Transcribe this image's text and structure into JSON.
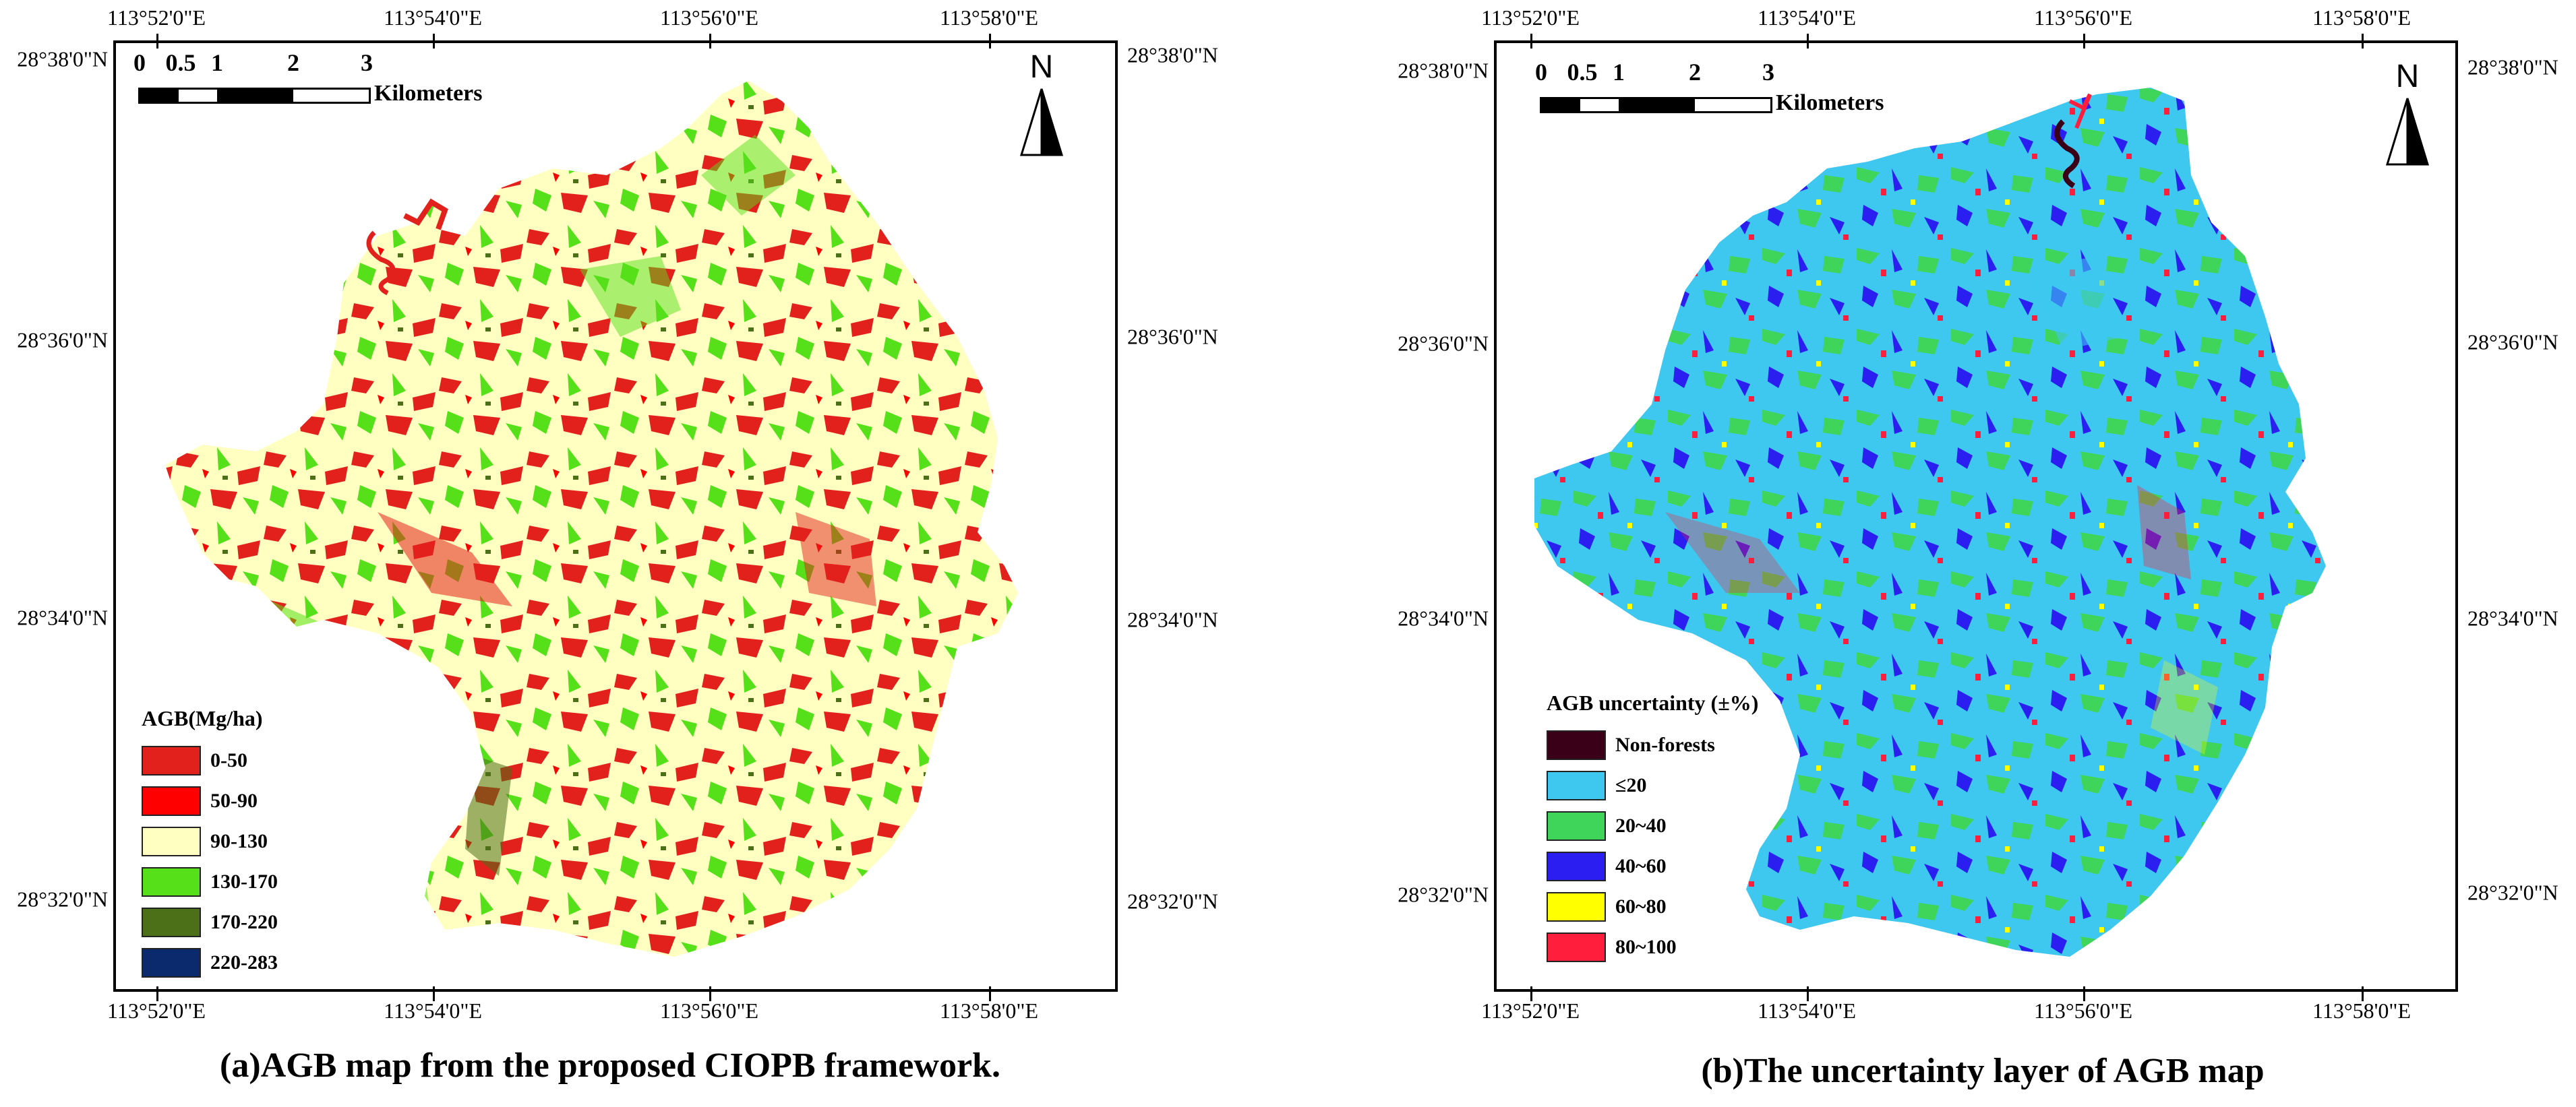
{
  "panels": [
    {
      "id": "a",
      "top_labels": [
        "113°52'0\"E",
        "113°54'0\"E",
        "113°56'0\"E",
        "113°58'0\"E"
      ],
      "bottom_labels": [
        "113°52'0\"E",
        "113°54'0\"E",
        "113°56'0\"E",
        "113°58'0\"E"
      ],
      "left_labels": [
        "28°38'0\"N",
        "28°36'0\"N",
        "28°34'0\"N",
        "28°32'0\"N"
      ],
      "right_labels": [
        "28°38'0\"N",
        "28°36'0\"N",
        "28°34'0\"N",
        "28°32'0\"N"
      ],
      "scale_numbers": [
        "0",
        "0.5",
        "1",
        "2",
        "3"
      ],
      "scale_unit": "Kilometers",
      "north_label": "N",
      "legend_title": "AGB(Mg/ha)",
      "legend": [
        {
          "label": "0-50",
          "color": "#e3211c"
        },
        {
          "label": "50-90",
          "color": "#ff0000"
        },
        {
          "label": "90-130",
          "color": "#ffffc2"
        },
        {
          "label": "130-170",
          "color": "#55e01a"
        },
        {
          "label": "170-220",
          "color": "#4c7018"
        },
        {
          "label": "220-283",
          "color": "#0b2a6e"
        }
      ],
      "caption": "(a)AGB map from the proposed CIOPB framework."
    },
    {
      "id": "b",
      "top_labels": [
        "113°52'0\"E",
        "113°54'0\"E",
        "113°56'0\"E",
        "113°58'0\"E"
      ],
      "bottom_labels": [
        "113°52'0\"E",
        "113°54'0\"E",
        "113°56'0\"E",
        "113°58'0\"E"
      ],
      "left_labels": [
        "28°38'0\"N",
        "28°36'0\"N",
        "28°34'0\"N",
        "28°32'0\"N"
      ],
      "right_labels": [
        "28°38'0\"N",
        "28°36'0\"N",
        "28°34'0\"N",
        "28°32'0\"N"
      ],
      "scale_numbers": [
        "0",
        "0.5",
        "1",
        "2",
        "3"
      ],
      "scale_unit": "Kilometers",
      "north_label": "N",
      "legend_title": "AGB uncertainty (±%)",
      "legend": [
        {
          "label": "Non-forests",
          "color": "#3a0018"
        },
        {
          "label": "≤20",
          "color": "#3ec8f0"
        },
        {
          "label": "20~40",
          "color": "#3fd45a"
        },
        {
          "label": "40~60",
          "color": "#2a1ef0"
        },
        {
          "label": "60~80",
          "color": "#ffff00"
        },
        {
          "label": "80~100",
          "color": "#ff1e3c"
        }
      ],
      "caption": "(b)The uncertainty layer of  AGB map"
    }
  ]
}
